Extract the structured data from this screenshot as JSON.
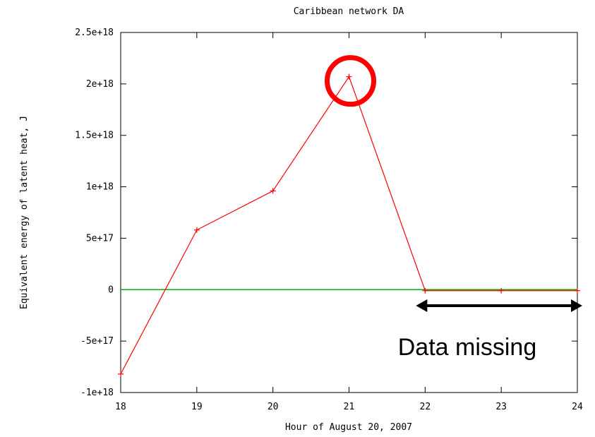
{
  "chart_data": {
    "type": "line",
    "title": "Caribbean network DA",
    "xlabel": "Hour of August 20, 2007",
    "ylabel": "Equivalent energy of latent heat, J",
    "xlim": [
      18,
      24
    ],
    "ylim": [
      -1e+18,
      2.5e+18
    ],
    "x_ticks": [
      18,
      19,
      20,
      21,
      22,
      23,
      24
    ],
    "x_tick_labels": [
      "18",
      "19",
      "20",
      "21",
      "22",
      "23",
      "24"
    ],
    "y_ticks": [
      -1e+18,
      -5e+17,
      0,
      5e+17,
      1e+18,
      1.5e+18,
      2e+18,
      2.5e+18
    ],
    "y_tick_labels": [
      "-1e+18",
      "-5e+17",
      "0",
      "5e+17",
      "1e+18",
      "1.5e+18",
      "2e+18",
      "2.5e+18"
    ],
    "grid": false,
    "series": [
      {
        "x": [
          18,
          19,
          20,
          21,
          22,
          23,
          24
        ],
        "y": [
          -8.2e+17,
          5.8e+17,
          9.6e+17,
          2.07e+18,
          -1e+16,
          -1e+16,
          -1e+16
        ],
        "color": "#ff0000",
        "marker": "+"
      }
    ],
    "reference_line": {
      "y": 0,
      "color": "#00b000"
    },
    "annotations": {
      "highlight_circle": {
        "x": 21,
        "y": 2.07e+18,
        "color": "#ff0000"
      },
      "range_arrow": {
        "x_from": 22,
        "x_to": 24
      },
      "range_label": "Data missing"
    }
  }
}
